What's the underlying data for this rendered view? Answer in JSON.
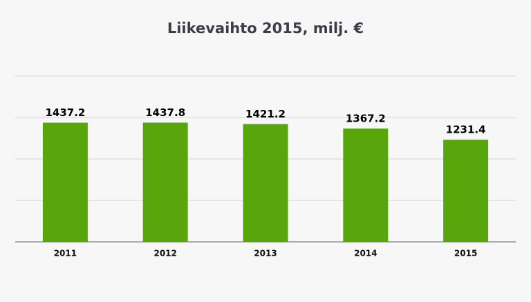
{
  "chart_data": {
    "type": "bar",
    "title": "Liikevaihto 2015, milj. €",
    "categories": [
      "2011",
      "2012",
      "2013",
      "2014",
      "2015"
    ],
    "values": [
      1437.2,
      1437.8,
      1421.2,
      1367.2,
      1231.4
    ],
    "color": "#59a50c",
    "ylim": [
      0,
      2000
    ],
    "yticks": [
      0,
      500,
      1000,
      1500,
      2000
    ],
    "grid": true
  }
}
